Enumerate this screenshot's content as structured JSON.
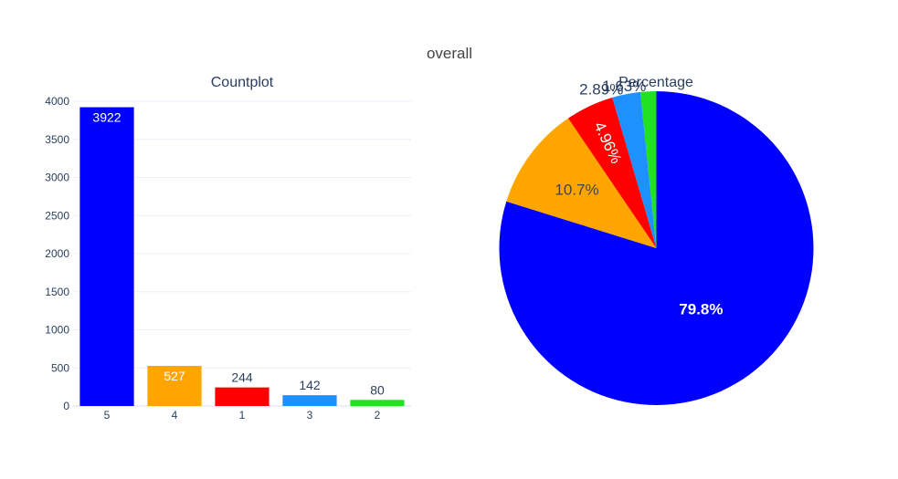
{
  "chart_data": {
    "title": "overall",
    "subplots": [
      {
        "type": "bar",
        "title": "Countplot",
        "categories": [
          "5",
          "4",
          "1",
          "3",
          "2"
        ],
        "values": [
          3922,
          527,
          244,
          142,
          80
        ],
        "colors": [
          "#0000ff",
          "#ffa500",
          "#ff0000",
          "#1e90ff",
          "#22e022"
        ],
        "value_labels": [
          "3922",
          "527",
          "244",
          "142",
          "80"
        ],
        "ylim": [
          0,
          4000
        ],
        "yticks": [
          0,
          500,
          1000,
          1500,
          2000,
          2500,
          3000,
          3500,
          4000
        ],
        "grid": true
      },
      {
        "type": "pie",
        "title": "Percentage",
        "slices": [
          {
            "category": "5",
            "percent": 79.8,
            "label": "79.8%",
            "color": "#0000ff"
          },
          {
            "category": "4",
            "percent": 10.7,
            "label": "10.7%",
            "color": "#ffa500"
          },
          {
            "category": "1",
            "percent": 4.96,
            "label": "4.96%",
            "color": "#ff0000"
          },
          {
            "category": "3",
            "percent": 2.89,
            "label": "2.89%",
            "color": "#1e90ff"
          },
          {
            "category": "2",
            "percent": 1.63,
            "label": "1.63%",
            "color": "#22e022"
          }
        ],
        "direction": "clockwise",
        "start": "top"
      }
    ]
  }
}
